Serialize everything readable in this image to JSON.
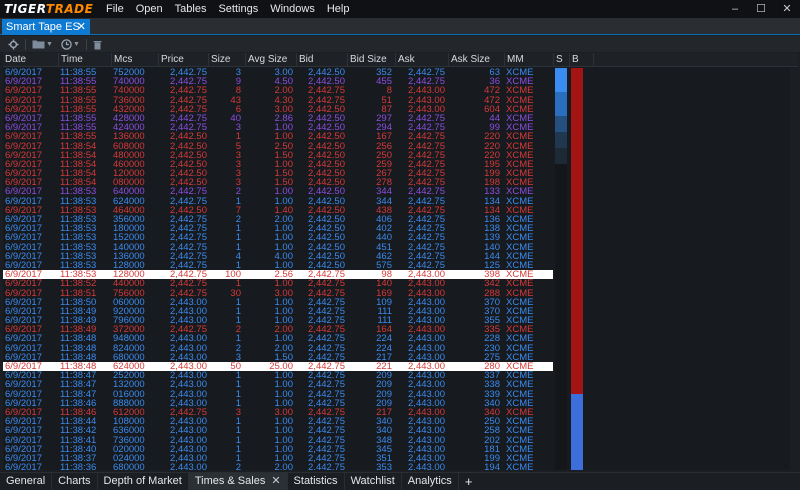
{
  "app": {
    "logo_left": "TIGER",
    "logo_right": "TRADE",
    "menu": [
      "File",
      "Open",
      "Tables",
      "Settings",
      "Windows",
      "Help"
    ],
    "window_controls": [
      "–",
      "☐",
      "✕"
    ]
  },
  "doc_tab": {
    "label": "Smart Tape ES",
    "close": "✕"
  },
  "toolbar": {
    "icons": [
      "gear-icon",
      "folder-icon",
      "clock-icon",
      "trash-icon"
    ]
  },
  "grid": {
    "columns": [
      "Date",
      "Time",
      "Mcs",
      "Price",
      "Size",
      "Avg Size",
      "Bid",
      "Bid Size",
      "Ask",
      "Ask Size",
      "MM",
      "S",
      "B"
    ],
    "colors": {
      "blue": "#3b8cf0",
      "red": "#d53a3a",
      "purple": "#8a4fe0",
      "hl_red": "#d53a3a",
      "hl_bg": "#ffffff"
    },
    "rows": [
      [
        "6/9/2017",
        "11:38:55",
        "752000",
        "2,442.75",
        "3",
        "3.00",
        "2,442.50",
        "352",
        "2,442.75",
        "63",
        "XCME",
        "blue"
      ],
      [
        "6/9/2017",
        "11:38:55",
        "740000",
        "2,442.75",
        "9",
        "4.50",
        "2,442.50",
        "455",
        "2,442.75",
        "36",
        "XCME",
        "purple"
      ],
      [
        "6/9/2017",
        "11:38:55",
        "740000",
        "2,442.75",
        "8",
        "2.00",
        "2,442.75",
        "8",
        "2,443.00",
        "472",
        "XCME",
        "red"
      ],
      [
        "6/9/2017",
        "11:38:55",
        "736000",
        "2,442.75",
        "43",
        "4.30",
        "2,442.75",
        "51",
        "2,443.00",
        "472",
        "XCME",
        "red"
      ],
      [
        "6/9/2017",
        "11:38:55",
        "432000",
        "2,442.75",
        "6",
        "3.00",
        "2,442.50",
        "87",
        "2,443.00",
        "604",
        "XCME",
        "red"
      ],
      [
        "6/9/2017",
        "11:38:55",
        "428000",
        "2,442.75",
        "40",
        "2.86",
        "2,442.50",
        "297",
        "2,442.75",
        "44",
        "XCME",
        "purple"
      ],
      [
        "6/9/2017",
        "11:38:55",
        "424000",
        "2,442.75",
        "3",
        "1.00",
        "2,442.50",
        "294",
        "2,442.75",
        "99",
        "XCME",
        "purple"
      ],
      [
        "6/9/2017",
        "11:38:55",
        "136000",
        "2,442.50",
        "1",
        "1.00",
        "2,442.50",
        "167",
        "2,442.75",
        "220",
        "XCME",
        "red"
      ],
      [
        "6/9/2017",
        "11:38:54",
        "608000",
        "2,442.50",
        "5",
        "2.50",
        "2,442.50",
        "256",
        "2,442.75",
        "220",
        "XCME",
        "red"
      ],
      [
        "6/9/2017",
        "11:38:54",
        "480000",
        "2,442.50",
        "3",
        "1.50",
        "2,442.50",
        "250",
        "2,442.75",
        "220",
        "XCME",
        "red"
      ],
      [
        "6/9/2017",
        "11:38:54",
        "460000",
        "2,442.50",
        "3",
        "1.00",
        "2,442.50",
        "259",
        "2,442.75",
        "195",
        "XCME",
        "red"
      ],
      [
        "6/9/2017",
        "11:38:54",
        "120000",
        "2,442.50",
        "3",
        "1.50",
        "2,442.50",
        "267",
        "2,442.75",
        "199",
        "XCME",
        "red"
      ],
      [
        "6/9/2017",
        "11:38:54",
        "080000",
        "2,442.50",
        "3",
        "1.50",
        "2,442.50",
        "278",
        "2,442.75",
        "198",
        "XCME",
        "red"
      ],
      [
        "6/9/2017",
        "11:38:53",
        "640000",
        "2,442.75",
        "2",
        "1.00",
        "2,442.50",
        "344",
        "2,442.75",
        "133",
        "XCME",
        "purple"
      ],
      [
        "6/9/2017",
        "11:38:53",
        "624000",
        "2,442.75",
        "1",
        "1.00",
        "2,442.50",
        "344",
        "2,442.75",
        "134",
        "XCME",
        "blue"
      ],
      [
        "6/9/2017",
        "11:38:53",
        "464000",
        "2,442.50",
        "7",
        "1.40",
        "2,442.50",
        "438",
        "2,442.75",
        "134",
        "XCME",
        "red"
      ],
      [
        "6/9/2017",
        "11:38:53",
        "356000",
        "2,442.75",
        "2",
        "2.00",
        "2,442.50",
        "406",
        "2,442.75",
        "136",
        "XCME",
        "blue"
      ],
      [
        "6/9/2017",
        "11:38:53",
        "180000",
        "2,442.75",
        "1",
        "1.00",
        "2,442.50",
        "402",
        "2,442.75",
        "138",
        "XCME",
        "blue"
      ],
      [
        "6/9/2017",
        "11:38:53",
        "152000",
        "2,442.75",
        "1",
        "1.00",
        "2,442.50",
        "440",
        "2,442.75",
        "139",
        "XCME",
        "blue"
      ],
      [
        "6/9/2017",
        "11:38:53",
        "140000",
        "2,442.75",
        "1",
        "1.00",
        "2,442.50",
        "451",
        "2,442.75",
        "140",
        "XCME",
        "blue"
      ],
      [
        "6/9/2017",
        "11:38:53",
        "136000",
        "2,442.75",
        "4",
        "4.00",
        "2,442.50",
        "462",
        "2,442.75",
        "144",
        "XCME",
        "blue"
      ],
      [
        "6/9/2017",
        "11:38:53",
        "128000",
        "2,442.75",
        "1",
        "1.00",
        "2,442.50",
        "575",
        "2,442.75",
        "125",
        "XCME",
        "blue"
      ],
      [
        "6/9/2017",
        "11:38:53",
        "128000",
        "2,442.75",
        "100",
        "2.56",
        "2,442.75",
        "98",
        "2,443.00",
        "398",
        "XCME",
        "hl"
      ],
      [
        "6/9/2017",
        "11:38:52",
        "440000",
        "2,442.75",
        "1",
        "1.00",
        "2,442.75",
        "140",
        "2,443.00",
        "342",
        "XCME",
        "red"
      ],
      [
        "6/9/2017",
        "11:38:51",
        "756000",
        "2,442.75",
        "30",
        "3.00",
        "2,442.75",
        "169",
        "2,443.00",
        "288",
        "XCME",
        "red"
      ],
      [
        "6/9/2017",
        "11:38:50",
        "060000",
        "2,443.00",
        "1",
        "1.00",
        "2,442.75",
        "109",
        "2,443.00",
        "370",
        "XCME",
        "blue"
      ],
      [
        "6/9/2017",
        "11:38:49",
        "920000",
        "2,443.00",
        "1",
        "1.00",
        "2,442.75",
        "111",
        "2,443.00",
        "370",
        "XCME",
        "blue"
      ],
      [
        "6/9/2017",
        "11:38:49",
        "796000",
        "2,443.00",
        "1",
        "1.00",
        "2,442.75",
        "111",
        "2,443.00",
        "355",
        "XCME",
        "blue"
      ],
      [
        "6/9/2017",
        "11:38:49",
        "372000",
        "2,442.75",
        "2",
        "2.00",
        "2,442.75",
        "164",
        "2,443.00",
        "335",
        "XCME",
        "red"
      ],
      [
        "6/9/2017",
        "11:38:48",
        "948000",
        "2,443.00",
        "1",
        "1.00",
        "2,442.75",
        "224",
        "2,443.00",
        "228",
        "XCME",
        "blue"
      ],
      [
        "6/9/2017",
        "11:38:48",
        "824000",
        "2,443.00",
        "2",
        "2.00",
        "2,442.75",
        "224",
        "2,443.00",
        "230",
        "XCME",
        "blue"
      ],
      [
        "6/9/2017",
        "11:38:48",
        "680000",
        "2,443.00",
        "3",
        "1.50",
        "2,442.75",
        "217",
        "2,443.00",
        "275",
        "XCME",
        "blue"
      ],
      [
        "6/9/2017",
        "11:38:48",
        "624000",
        "2,443.00",
        "50",
        "25.00",
        "2,442.75",
        "221",
        "2,443.00",
        "280",
        "XCME",
        "hl"
      ],
      [
        "6/9/2017",
        "11:38:47",
        "252000",
        "2,443.00",
        "1",
        "1.00",
        "2,442.75",
        "209",
        "2,443.00",
        "337",
        "XCME",
        "blue"
      ],
      [
        "6/9/2017",
        "11:38:47",
        "132000",
        "2,443.00",
        "1",
        "1.00",
        "2,442.75",
        "209",
        "2,443.00",
        "338",
        "XCME",
        "blue"
      ],
      [
        "6/9/2017",
        "11:38:47",
        "016000",
        "2,443.00",
        "1",
        "1.00",
        "2,442.75",
        "209",
        "2,443.00",
        "339",
        "XCME",
        "blue"
      ],
      [
        "6/9/2017",
        "11:38:46",
        "888000",
        "2,443.00",
        "1",
        "1.00",
        "2,442.75",
        "209",
        "2,443.00",
        "340",
        "XCME",
        "blue"
      ],
      [
        "6/9/2017",
        "11:38:46",
        "612000",
        "2,442.75",
        "3",
        "3.00",
        "2,442.75",
        "217",
        "2,443.00",
        "340",
        "XCME",
        "red"
      ],
      [
        "6/9/2017",
        "11:38:44",
        "108000",
        "2,443.00",
        "1",
        "1.00",
        "2,442.75",
        "340",
        "2,443.00",
        "250",
        "XCME",
        "blue"
      ],
      [
        "6/9/2017",
        "11:38:42",
        "636000",
        "2,443.00",
        "1",
        "1.00",
        "2,442.75",
        "340",
        "2,443.00",
        "258",
        "XCME",
        "blue"
      ],
      [
        "6/9/2017",
        "11:38:41",
        "736000",
        "2,443.00",
        "1",
        "1.00",
        "2,442.75",
        "348",
        "2,443.00",
        "202",
        "XCME",
        "blue"
      ],
      [
        "6/9/2017",
        "11:38:40",
        "020000",
        "2,443.00",
        "1",
        "1.00",
        "2,442.75",
        "345",
        "2,443.00",
        "181",
        "XCME",
        "blue"
      ],
      [
        "6/9/2017",
        "11:38:37",
        "024000",
        "2,443.00",
        "1",
        "1.00",
        "2,442.75",
        "351",
        "2,443.00",
        "199",
        "XCME",
        "blue"
      ],
      [
        "6/9/2017",
        "11:38:36",
        "680000",
        "2,443.00",
        "2",
        "2.00",
        "2,442.75",
        "353",
        "2,443.00",
        "194",
        "XCME",
        "blue"
      ],
      [
        "6/9/2017",
        "11:38:33",
        "532000",
        "2,443.00",
        "3",
        "1.00",
        "2,442.75",
        "457",
        "2,443.00",
        "195",
        "XCME",
        "purple"
      ]
    ],
    "s_bar": [
      {
        "from": 0.0,
        "to": 0.06,
        "color": "#3b8cf0"
      },
      {
        "from": 0.06,
        "to": 0.12,
        "color": "#2a6fbf"
      },
      {
        "from": 0.12,
        "to": 0.16,
        "color": "#244f7e"
      },
      {
        "from": 0.16,
        "to": 0.2,
        "color": "#1f3850"
      },
      {
        "from": 0.2,
        "to": 0.24,
        "color": "#1d2a36"
      }
    ],
    "b_bar": [
      {
        "from": 0.0,
        "to": 0.81,
        "color": "#a31515"
      },
      {
        "from": 0.81,
        "to": 1.0,
        "color": "#3c6fdc"
      }
    ]
  },
  "bottom_tabs": [
    {
      "label": "General",
      "active": false
    },
    {
      "label": "Charts",
      "active": false
    },
    {
      "label": "Depth of Market",
      "active": false
    },
    {
      "label": "Times & Sales",
      "active": true,
      "close": "✕"
    },
    {
      "label": "Statistics",
      "active": false
    },
    {
      "label": "Watchlist",
      "active": false
    },
    {
      "label": "Analytics",
      "active": false
    }
  ],
  "add_tab": "+"
}
